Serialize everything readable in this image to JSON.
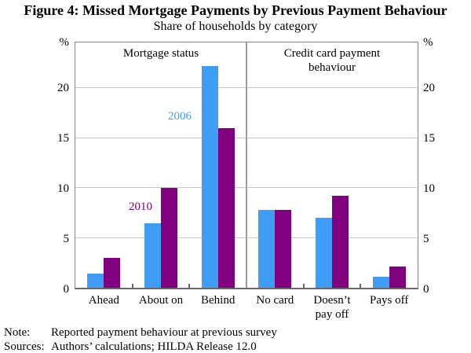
{
  "chart_data": {
    "type": "bar",
    "title": "Figure 4: Missed Mortgage Payments by Previous Payment Behaviour",
    "subtitle": "Share of households by category",
    "unit": "%",
    "ylim": [
      0,
      24.6
    ],
    "yticks": [
      0,
      5,
      10,
      15,
      20
    ],
    "grid": "horizontal",
    "legend_position": "in-plot annotations",
    "colors": {
      "2006": "#3F9DF5",
      "2010": "#800080"
    },
    "panels": [
      {
        "label": "Mortgage status",
        "categories": [
          "Ahead",
          "About on",
          "Behind"
        ],
        "series": [
          {
            "name": "2006",
            "values": [
              1.4,
              6.5,
              22.2
            ]
          },
          {
            "name": "2010",
            "values": [
              3.0,
              10.0,
              16.0
            ]
          }
        ]
      },
      {
        "label": "Credit card payment behaviour",
        "categories": [
          "No card",
          "Doesn’t\npay off",
          "Pays off"
        ],
        "series": [
          {
            "name": "2006",
            "values": [
              7.8,
              7.0,
              1.1
            ]
          },
          {
            "name": "2010",
            "values": [
              7.8,
              9.2,
              2.1
            ]
          }
        ]
      }
    ],
    "note_label": "Note:",
    "note": "Reported payment behaviour at previous survey",
    "sources_label": "Sources:",
    "sources": "Authors’ calculations; HILDA Release 12.0"
  }
}
